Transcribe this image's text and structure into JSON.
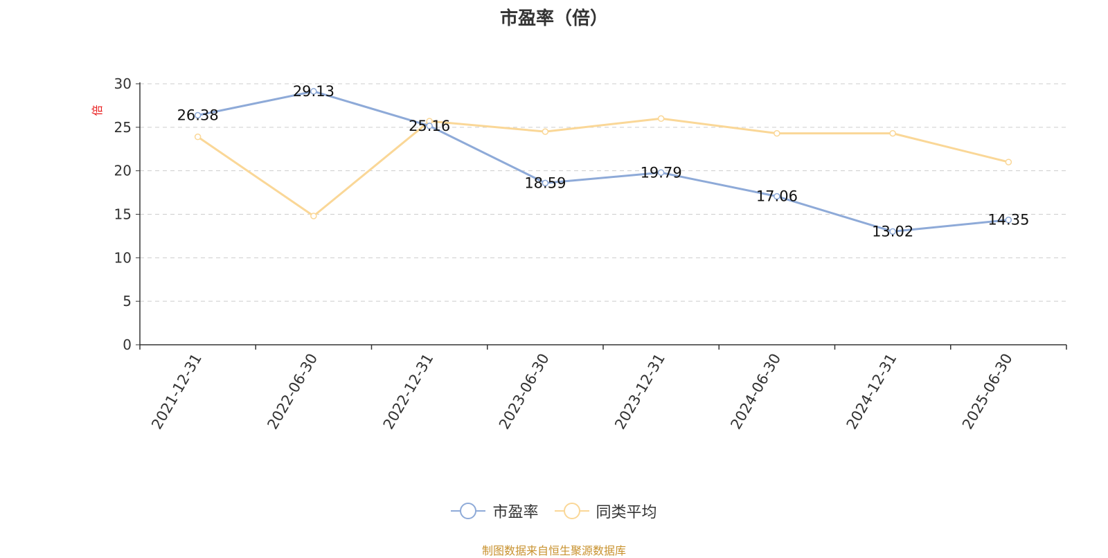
{
  "chart_data": {
    "type": "line",
    "title": "市盈率（倍）",
    "ylabel": "倍",
    "xlabel": "",
    "categories": [
      "2021-12-31",
      "2022-06-30",
      "2022-12-31",
      "2023-06-30",
      "2023-12-31",
      "2024-06-30",
      "2024-12-31",
      "2025-06-30"
    ],
    "ylim": [
      0,
      30
    ],
    "yticks": [
      0,
      5,
      10,
      15,
      20,
      25,
      30
    ],
    "grid": true,
    "legend_position": "bottom",
    "series": [
      {
        "name": "市盈率",
        "color": "#8eaad8",
        "values": [
          26.38,
          29.13,
          25.16,
          18.59,
          19.79,
          17.06,
          13.02,
          14.35
        ],
        "labels": true
      },
      {
        "name": "同类平均",
        "color": "#fad797",
        "values": [
          23.9,
          14.8,
          25.7,
          24.5,
          26.0,
          24.3,
          24.3,
          21.0
        ],
        "labels": false
      }
    ]
  },
  "source": "制图数据来自恒生聚源数据库",
  "colors": {
    "ylabel": "#e8191a",
    "axis": "#333333",
    "grid": "#cccccc",
    "source": "#c8922f"
  }
}
